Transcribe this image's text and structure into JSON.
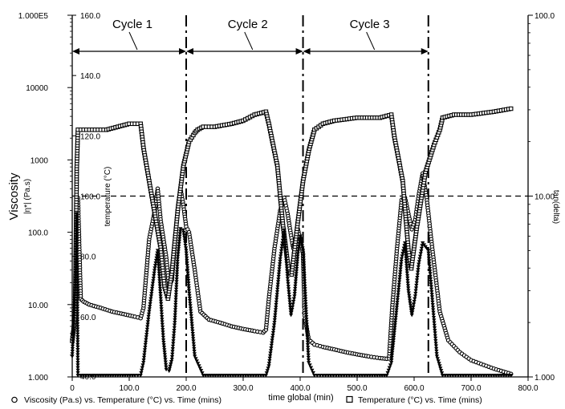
{
  "chart_data": {
    "type": "line",
    "x_axis": {
      "label": "time global (min)",
      "range": [
        0,
        800
      ],
      "ticks": [
        "0",
        "100.0",
        "200.0",
        "300.0",
        "400.0",
        "500.0",
        "600.0",
        "700.0",
        "800.0"
      ]
    },
    "y_axis_viscosity": {
      "title": "Viscosity",
      "subtitle": "|η*| (Pa.s)",
      "scale": "log",
      "range": [
        1,
        100000
      ],
      "ticks": [
        "1.000",
        "10.00",
        "100.0",
        "1000",
        "10000",
        "1.000E5"
      ]
    },
    "y_axis_temperature": {
      "title": "temperature (°C)",
      "range": [
        40,
        160
      ],
      "ticks": [
        "40.0",
        "60.0",
        "80.0",
        "100.0",
        "120.0",
        "140.0",
        "160.0"
      ]
    },
    "y_axis_tandelta": {
      "title": "tan(delta)",
      "scale": "log",
      "range": [
        1,
        100
      ],
      "ticks": [
        "1.000",
        "10.00",
        "100.0"
      ]
    },
    "cycles": [
      {
        "label": "Cycle 1",
        "from": 0,
        "to": 200
      },
      {
        "label": "Cycle 2",
        "from": 200,
        "to": 405
      },
      {
        "label": "Cycle 3",
        "from": 405,
        "to": 625
      }
    ],
    "cycle_boundaries": [
      200,
      405,
      625
    ],
    "reference_line_tandelta": 10,
    "series": [
      {
        "name": "Viscosity (Pa.s) vs. Temperature (°C) vs. Time (mins)",
        "axis": "viscosity",
        "marker": "circle",
        "x": [
          10,
          15,
          20,
          30,
          50,
          70,
          90,
          110,
          120,
          125,
          135,
          145,
          150,
          155,
          165,
          170,
          175,
          180,
          185,
          190,
          195,
          200,
          205,
          215,
          225,
          240,
          260,
          280,
          300,
          320,
          335,
          340,
          345,
          355,
          365,
          372,
          378,
          384,
          388,
          392,
          396,
          400,
          405,
          408,
          415,
          425,
          440,
          460,
          480,
          500,
          520,
          540,
          552,
          556,
          562,
          570,
          578,
          584,
          590,
          596,
          602,
          608,
          615,
          622,
          630,
          645,
          660,
          680,
          700,
          740,
          770
        ],
        "values": [
          300,
          12,
          11,
          10,
          9,
          8,
          7.4,
          6.8,
          6.5,
          9,
          80,
          200,
          400,
          150,
          45,
          18,
          22,
          70,
          200,
          400,
          240,
          120,
          100,
          30,
          8,
          6.2,
          5.6,
          5,
          4.6,
          4.3,
          4.1,
          4.5,
          12,
          60,
          200,
          300,
          180,
          90,
          60,
          80,
          110,
          80,
          50,
          7,
          3.3,
          2.8,
          2.6,
          2.4,
          2.2,
          2.05,
          1.92,
          1.82,
          1.78,
          1.8,
          10,
          60,
          280,
          300,
          180,
          110,
          150,
          320,
          650,
          300,
          80,
          8,
          3.2,
          2.2,
          1.7,
          1.3,
          1.1
        ]
      },
      {
        "name": "Temperature (°C) vs. Time (mins)",
        "axis": "temperature",
        "marker": "square",
        "x": [
          0,
          5,
          8,
          10,
          20,
          40,
          60,
          80,
          100,
          120,
          125,
          135,
          145,
          155,
          162,
          168,
          175,
          185,
          195,
          205,
          215,
          220,
          230,
          250,
          280,
          300,
          320,
          340,
          345,
          360,
          370,
          380,
          385,
          395,
          405,
          415,
          425,
          440,
          460,
          500,
          540,
          560,
          565,
          580,
          590,
          595,
          605,
          620,
          635,
          645,
          650,
          670,
          700,
          740,
          770
        ],
        "values": [
          52,
          60,
          110,
          122,
          122,
          122,
          122,
          123,
          124,
          124,
          116,
          105,
          94,
          83,
          70,
          66,
          75,
          95,
          110,
          118,
          121,
          122,
          123,
          123,
          124,
          125,
          127,
          128,
          124,
          110,
          90,
          75,
          74,
          90,
          105,
          115,
          122,
          124,
          125,
          126,
          126,
          127,
          120,
          105,
          82,
          76,
          90,
          108,
          117,
          122,
          126,
          127,
          127,
          128,
          129
        ]
      },
      {
        "name": "tan(delta)",
        "axis": "tandelta",
        "marker": "triangle",
        "x": [
          0,
          5,
          8,
          10,
          20,
          50,
          80,
          110,
          120,
          125,
          135,
          145,
          150,
          155,
          160,
          165,
          170,
          175,
          180,
          185,
          190,
          195,
          200,
          205,
          215,
          230,
          260,
          300,
          340,
          345,
          355,
          365,
          372,
          378,
          384,
          390,
          396,
          400,
          405,
          415,
          425,
          440,
          500,
          540,
          552,
          560,
          570,
          578,
          584,
          590,
          596,
          602,
          608,
          615,
          625,
          640,
          650,
          700,
          740,
          770
        ],
        "values": [
          1.3,
          3,
          8,
          1.02,
          1.02,
          1.02,
          1.02,
          1.02,
          1.02,
          1.2,
          2.3,
          4,
          5,
          2.8,
          1.6,
          1.1,
          1.08,
          1.25,
          2,
          4.5,
          6.6,
          6.5,
          5,
          3,
          1.3,
          1.02,
          1.02,
          1.02,
          1.02,
          1.15,
          2,
          4.5,
          6.5,
          3.5,
          2.2,
          2.8,
          4.8,
          6,
          5,
          1.2,
          1.02,
          1.02,
          1.02,
          1.02,
          1.02,
          1.2,
          2.5,
          4.5,
          5.5,
          3,
          2.2,
          2.8,
          4.2,
          5.5,
          5,
          1.3,
          1.02,
          1.02,
          1.02,
          1.02
        ]
      }
    ]
  }
}
